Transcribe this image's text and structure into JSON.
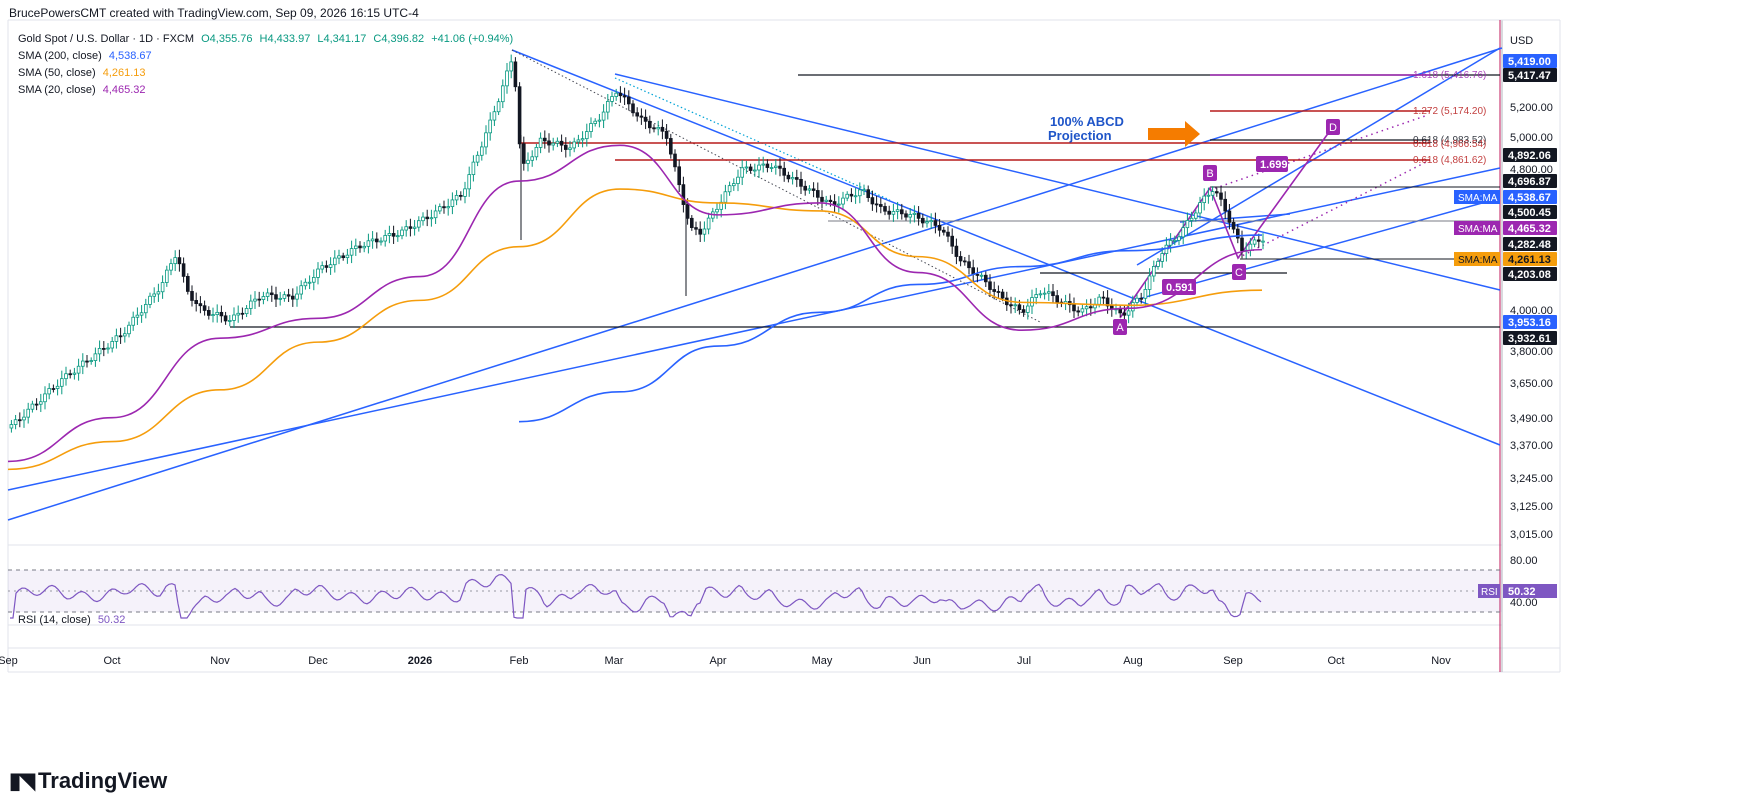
{
  "header": {
    "creator": "BrucePowersCMT created with TradingView.com, Sep 09, 2026 16:15 UTC-4"
  },
  "legend": {
    "symbol": "Gold Spot / U.S. Dollar · 1D · FXCM",
    "ohlc": {
      "o": "O4,355.76",
      "h": "H4,433.97",
      "l": "L4,341.17",
      "c": "C4,396.82",
      "chg": "+41.06 (+0.94%)"
    },
    "sma200": {
      "label": "SMA (200, close)",
      "value": "4,538.67",
      "color": "#2962ff"
    },
    "sma50": {
      "label": "SMA (50, close)",
      "value": "4,261.13",
      "color": "#f59d0c"
    },
    "sma20": {
      "label": "SMA (20, close)",
      "value": "4,465.32",
      "color": "#9c27b0"
    },
    "rsi": {
      "label": "RSI (14, close)",
      "value": "50.32"
    }
  },
  "axis": {
    "currency": "USD",
    "y_ticks": [
      "5,200.00",
      "5,000.00",
      "4,800.00",
      "4,000.00",
      "3,800.00",
      "3,650.00",
      "3,490.00",
      "3,370.00",
      "3,245.00",
      "3,125.00",
      "3,015.00"
    ],
    "rsi_ticks": [
      "80.00",
      "40.00"
    ],
    "x_ticks": [
      "Sep",
      "Oct",
      "Nov",
      "Dec",
      "2026",
      "Feb",
      "Mar",
      "Apr",
      "May",
      "Jun",
      "Jul",
      "Aug",
      "Sep",
      "Oct",
      "Nov"
    ]
  },
  "price_labels": [
    {
      "text": "5,419.00",
      "bg": "#2962ff",
      "fg": "#ffffff"
    },
    {
      "text": "5,417.47",
      "bg": "#131722",
      "fg": "#ffffff"
    },
    {
      "text": "4,892.06",
      "bg": "#131722",
      "fg": "#ffffff"
    },
    {
      "text": "4,696.87",
      "bg": "#131722",
      "fg": "#ffffff"
    },
    {
      "text": "4,538.67",
      "bg": "#2962ff",
      "fg": "#ffffff"
    },
    {
      "text": "4,500.45",
      "bg": "#131722",
      "fg": "#ffffff"
    },
    {
      "text": "4,465.32",
      "bg": "#9c27b0",
      "fg": "#ffffff"
    },
    {
      "text": "4,282.48",
      "bg": "#131722",
      "fg": "#ffffff"
    },
    {
      "text": "4,261.13",
      "bg": "#f59d0c",
      "fg": "#131722"
    },
    {
      "text": "4,203.08",
      "bg": "#131722",
      "fg": "#ffffff"
    },
    {
      "text": "3,953.16",
      "bg": "#2962ff",
      "fg": "#ffffff"
    },
    {
      "text": "3,932.61",
      "bg": "#131722",
      "fg": "#ffffff"
    }
  ],
  "ma_tags": [
    {
      "text": "SMA:MA",
      "color": "#2962ff"
    },
    {
      "text": "SMA:MA",
      "color": "#9c27b0"
    },
    {
      "text": "SMA:MA",
      "color": "#f59d0c"
    }
  ],
  "rsi_tag": {
    "name": "RSI",
    "value": "50.32"
  },
  "fib_labels": [
    "1.618 (5,416.76)",
    "1.272 (5,174.20)",
    "0.618 (4,983.52)",
    "0.618 (4,966.54)",
    "0.618 (4,861.62)"
  ],
  "annotations": {
    "abcd_title_1": "100% ABCD",
    "abcd_title_2": "Projection",
    "ratio_1": "1.699",
    "ratio_2": "0.591",
    "points": [
      "A",
      "B",
      "C",
      "D"
    ]
  },
  "brand": "TradingView",
  "chart_data": {
    "type": "line",
    "title": "Gold Spot / U.S. Dollar · 1D · FXCM",
    "ylabel": "USD",
    "ylim": [
      2950,
      5450
    ],
    "x": [
      "Sep",
      "Oct",
      "Nov",
      "Dec",
      "2026",
      "Feb",
      "Mar",
      "Apr",
      "May",
      "Jun",
      "Jul",
      "Aug",
      "Sep"
    ],
    "series": [
      {
        "name": "SMA (200, close)",
        "values": [
          null,
          null,
          null,
          null,
          null,
          3600,
          3750,
          3980,
          4150,
          4290,
          4380,
          4460,
          4538.67
        ]
      },
      {
        "name": "SMA (50, close)",
        "values": [
          3360,
          3500,
          3760,
          4000,
          4210,
          4480,
          4770,
          4700,
          4660,
          4430,
          4200,
          4185,
          4261.13
        ]
      },
      {
        "name": "SMA (20, close)",
        "values": [
          3400,
          3620,
          4020,
          4120,
          4330,
          4810,
          4990,
          4640,
          4700,
          4350,
          4060,
          4170,
          4465.32
        ]
      }
    ],
    "annotations": [
      "A",
      "B",
      "C",
      "D",
      "100% ABCD Projection",
      "1.699",
      "0.591"
    ],
    "grid": false
  }
}
